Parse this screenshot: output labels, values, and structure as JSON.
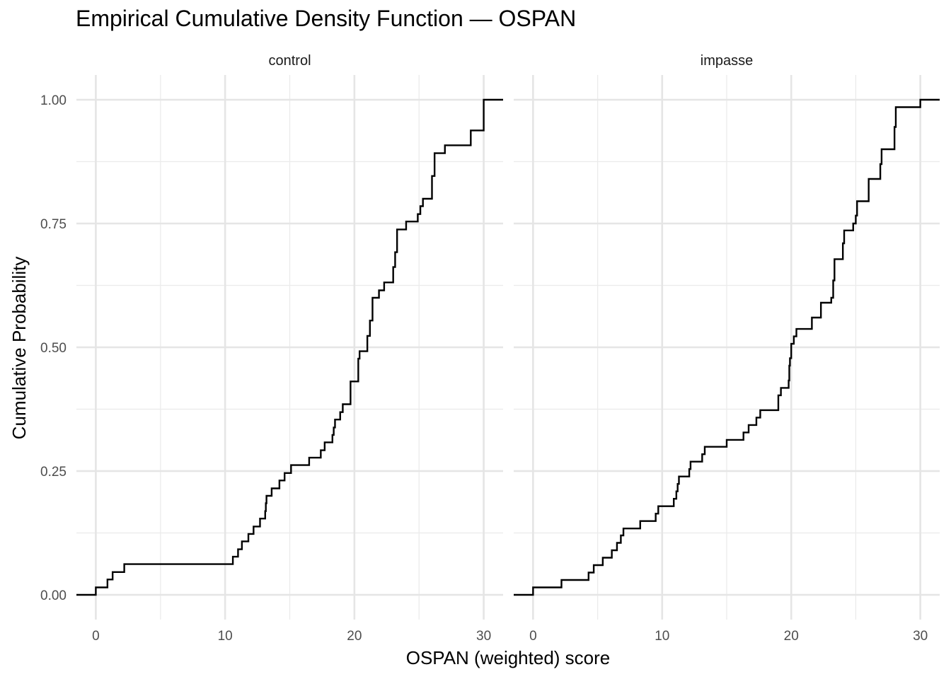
{
  "chart_data": {
    "type": "line",
    "title": "Empirical Cumulative Density Function — OSPAN",
    "xlabel": "OSPAN (weighted) score",
    "ylabel": "Cumulative Probability",
    "xlim": [
      -1.5,
      31.5
    ],
    "ylim": [
      -0.05,
      1.05
    ],
    "x_ticks": [
      0,
      10,
      20,
      30
    ],
    "x_tick_labels": [
      "0",
      "10",
      "20",
      "30"
    ],
    "y_ticks": [
      0,
      0.25,
      0.5,
      0.75,
      1
    ],
    "y_tick_labels": [
      "0.00",
      "0.25",
      "0.50",
      "0.75",
      "1.00"
    ],
    "grid": true,
    "legend": "none",
    "line_color": "#000000",
    "panels": [
      {
        "label": "control",
        "steps": [
          [
            0,
            0.015
          ],
          [
            0.9,
            0.031
          ],
          [
            1.3,
            0.046
          ],
          [
            2.2,
            0.062
          ],
          [
            10.6,
            0.077
          ],
          [
            11.0,
            0.092
          ],
          [
            11.3,
            0.108
          ],
          [
            11.8,
            0.123
          ],
          [
            12.2,
            0.138
          ],
          [
            12.7,
            0.154
          ],
          [
            13.1,
            0.169
          ],
          [
            13.15,
            0.185
          ],
          [
            13.2,
            0.2
          ],
          [
            13.6,
            0.215
          ],
          [
            14.2,
            0.231
          ],
          [
            14.6,
            0.246
          ],
          [
            15.1,
            0.262
          ],
          [
            16.5,
            0.277
          ],
          [
            17.4,
            0.292
          ],
          [
            17.7,
            0.308
          ],
          [
            18.3,
            0.323
          ],
          [
            18.4,
            0.338
          ],
          [
            18.5,
            0.354
          ],
          [
            18.9,
            0.369
          ],
          [
            19.1,
            0.385
          ],
          [
            19.7,
            0.431
          ],
          [
            20.3,
            0.477
          ],
          [
            20.4,
            0.492
          ],
          [
            21.0,
            0.523
          ],
          [
            21.2,
            0.554
          ],
          [
            21.4,
            0.6
          ],
          [
            21.9,
            0.615
          ],
          [
            22.3,
            0.631
          ],
          [
            23.0,
            0.662
          ],
          [
            23.15,
            0.692
          ],
          [
            23.3,
            0.738
          ],
          [
            24.0,
            0.754
          ],
          [
            24.9,
            0.769
          ],
          [
            25.1,
            0.785
          ],
          [
            25.3,
            0.8
          ],
          [
            26.0,
            0.846
          ],
          [
            26.2,
            0.892
          ],
          [
            27.0,
            0.908
          ],
          [
            29.0,
            0.938
          ],
          [
            30.0,
            1.0
          ]
        ]
      },
      {
        "label": "impasse",
        "steps": [
          [
            0,
            0.015
          ],
          [
            2.2,
            0.03
          ],
          [
            4.3,
            0.045
          ],
          [
            4.7,
            0.06
          ],
          [
            5.4,
            0.075
          ],
          [
            6.1,
            0.09
          ],
          [
            6.5,
            0.105
          ],
          [
            6.8,
            0.12
          ],
          [
            7.0,
            0.134
          ],
          [
            8.3,
            0.149
          ],
          [
            9.5,
            0.164
          ],
          [
            9.7,
            0.179
          ],
          [
            10.9,
            0.194
          ],
          [
            11.1,
            0.209
          ],
          [
            11.2,
            0.224
          ],
          [
            11.3,
            0.239
          ],
          [
            12.1,
            0.254
          ],
          [
            12.2,
            0.269
          ],
          [
            13.1,
            0.284
          ],
          [
            13.3,
            0.299
          ],
          [
            15.0,
            0.313
          ],
          [
            16.3,
            0.328
          ],
          [
            16.7,
            0.343
          ],
          [
            17.3,
            0.358
          ],
          [
            17.6,
            0.373
          ],
          [
            19.0,
            0.403
          ],
          [
            19.2,
            0.418
          ],
          [
            19.8,
            0.433
          ],
          [
            19.85,
            0.463
          ],
          [
            19.9,
            0.478
          ],
          [
            20.0,
            0.507
          ],
          [
            20.2,
            0.522
          ],
          [
            20.4,
            0.537
          ],
          [
            21.6,
            0.56
          ],
          [
            22.3,
            0.59
          ],
          [
            23.1,
            0.6
          ],
          [
            23.25,
            0.635
          ],
          [
            23.35,
            0.678
          ],
          [
            24.0,
            0.71
          ],
          [
            24.1,
            0.736
          ],
          [
            24.8,
            0.75
          ],
          [
            25.0,
            0.766
          ],
          [
            25.1,
            0.795
          ],
          [
            26.0,
            0.84
          ],
          [
            26.9,
            0.87
          ],
          [
            27.0,
            0.9
          ],
          [
            28.0,
            0.945
          ],
          [
            28.1,
            0.985
          ],
          [
            30.0,
            1.0
          ]
        ]
      }
    ]
  }
}
